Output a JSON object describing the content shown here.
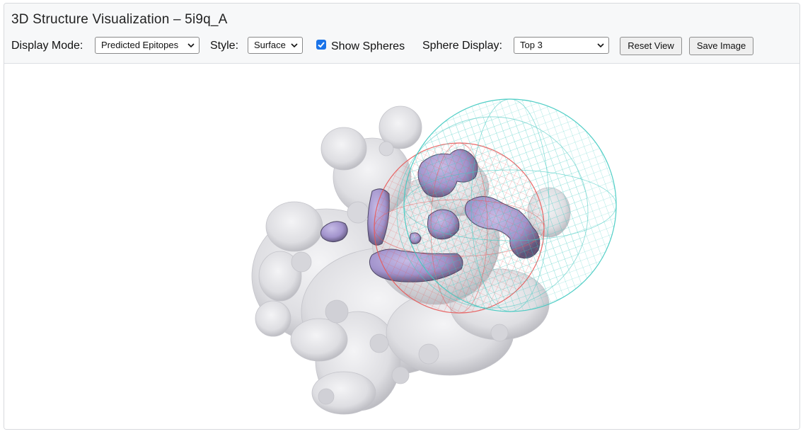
{
  "header": {
    "title": "3D Structure Visualization – 5i9q_A"
  },
  "controls": {
    "display_mode_label": "Display Mode:",
    "display_mode_value": "Predicted Epitopes",
    "style_label": "Style:",
    "style_value": "Surface",
    "show_spheres_label": "Show Spheres",
    "show_spheres_checked": true,
    "sphere_display_label": "Sphere Display:",
    "sphere_display_value": "Top 3",
    "reset_view_label": "Reset View",
    "save_image_label": "Save Image"
  },
  "colors": {
    "protein_surface": "#e7e7ea",
    "epitope": "#a79ad0",
    "sphere_red": "#e85858",
    "sphere_cyan": "#3ec9c0",
    "checkbox_accent": "#1a73e8"
  }
}
